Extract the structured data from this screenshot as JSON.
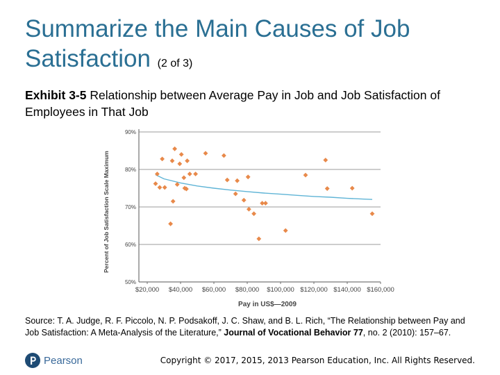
{
  "slide": {
    "title_main": "Summarize the Main Causes of Job Satisfaction",
    "title_sub": "(2 of 3)",
    "exhibit_label": "Exhibit 3-5",
    "exhibit_text": "Relationship between Average Pay in Job and Job Satisfaction of Employees in That Job",
    "source_prefix": "Source: T. A. Judge, R. F. Piccolo, N. P. Podsakoff, J. C. Shaw, and B. L. Rich, “The Relationship between Pay and Job Satisfaction: A Meta-Analysis of the Literature,”",
    "source_journal": "Journal of Vocational Behavior 77",
    "source_suffix": ", no. 2 (2010): 157–67.",
    "logo_text": "Pearson",
    "copyright": "Copyright © 2017, 2015, 2013 Pearson Education, Inc. All Rights Reserved."
  },
  "chart_data": {
    "type": "scatter",
    "xlabel": "Pay in US$—2009",
    "ylabel": "Percent of Job Satisfaction Scale Maximum",
    "xlim": [
      15000,
      160000
    ],
    "ylim": [
      50,
      90
    ],
    "x_ticks": [
      20000,
      40000,
      60000,
      80000,
      100000,
      120000,
      140000,
      160000
    ],
    "x_tick_labels": [
      "$20,000",
      "$40,000",
      "$60,000",
      "$80,000",
      "$100,000",
      "$120,000",
      "$140,000",
      "$160,000"
    ],
    "y_ticks": [
      50,
      60,
      70,
      80,
      90
    ],
    "y_tick_labels": [
      "50%",
      "60%",
      "70%",
      "80%",
      "90%"
    ],
    "grid": "horizontal",
    "point_color": "#e8894a",
    "trend_color": "#5fb4d6",
    "points": [
      {
        "x": 25000,
        "y": 76.2
      },
      {
        "x": 26000,
        "y": 78.8
      },
      {
        "x": 27500,
        "y": 75.2
      },
      {
        "x": 29000,
        "y": 82.8
      },
      {
        "x": 30500,
        "y": 75.2
      },
      {
        "x": 34000,
        "y": 65.5
      },
      {
        "x": 35000,
        "y": 82.3
      },
      {
        "x": 35500,
        "y": 71.5
      },
      {
        "x": 36500,
        "y": 85.5
      },
      {
        "x": 38000,
        "y": 76.0
      },
      {
        "x": 39500,
        "y": 81.5
      },
      {
        "x": 40500,
        "y": 84.0
      },
      {
        "x": 42000,
        "y": 77.8
      },
      {
        "x": 42500,
        "y": 75.0
      },
      {
        "x": 43500,
        "y": 74.8
      },
      {
        "x": 44000,
        "y": 82.3
      },
      {
        "x": 45500,
        "y": 78.8
      },
      {
        "x": 49000,
        "y": 78.8
      },
      {
        "x": 55000,
        "y": 84.3
      },
      {
        "x": 66000,
        "y": 83.7
      },
      {
        "x": 68000,
        "y": 77.2
      },
      {
        "x": 73000,
        "y": 73.5
      },
      {
        "x": 74000,
        "y": 77.0
      },
      {
        "x": 78000,
        "y": 71.8
      },
      {
        "x": 80500,
        "y": 78.0
      },
      {
        "x": 81000,
        "y": 69.4
      },
      {
        "x": 84000,
        "y": 68.2
      },
      {
        "x": 87000,
        "y": 61.5
      },
      {
        "x": 89000,
        "y": 71.0
      },
      {
        "x": 91000,
        "y": 71.0
      },
      {
        "x": 103000,
        "y": 63.7
      },
      {
        "x": 115000,
        "y": 78.5
      },
      {
        "x": 127000,
        "y": 82.5
      },
      {
        "x": 128000,
        "y": 74.9
      },
      {
        "x": 143000,
        "y": 75.0
      },
      {
        "x": 155000,
        "y": 68.2
      }
    ],
    "trend": [
      {
        "x": 25000,
        "y": 78.6
      },
      {
        "x": 30000,
        "y": 77.5
      },
      {
        "x": 40000,
        "y": 76.4
      },
      {
        "x": 50000,
        "y": 75.6
      },
      {
        "x": 60000,
        "y": 75.0
      },
      {
        "x": 70000,
        "y": 74.5
      },
      {
        "x": 80000,
        "y": 74.1
      },
      {
        "x": 90000,
        "y": 73.7
      },
      {
        "x": 100000,
        "y": 73.4
      },
      {
        "x": 110000,
        "y": 73.1
      },
      {
        "x": 120000,
        "y": 72.8
      },
      {
        "x": 130000,
        "y": 72.6
      },
      {
        "x": 140000,
        "y": 72.3
      },
      {
        "x": 150000,
        "y": 72.1
      },
      {
        "x": 155000,
        "y": 72.0
      }
    ]
  }
}
